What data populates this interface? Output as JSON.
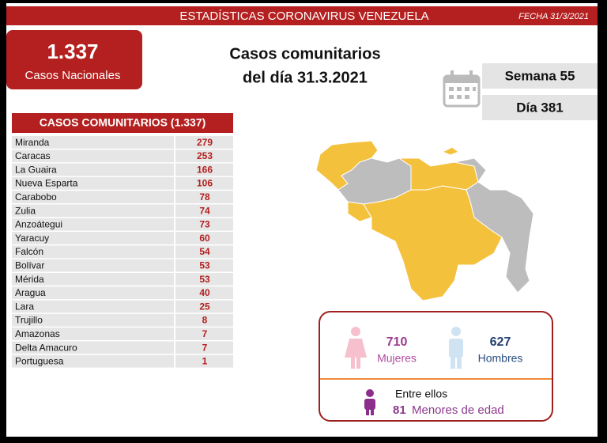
{
  "header": {
    "title": "ESTADÍSTICAS CORONAVIRUS VENEZUELA",
    "date": "FECHA 31/3/2021"
  },
  "national": {
    "value": "1.337",
    "label": "Casos Nacionales"
  },
  "headline": [
    "Casos comunitarios",
    "del día 31.3.2021"
  ],
  "week": "Semana 55",
  "day": "Día 381",
  "table": {
    "title": "CASOS COMUNITARIOS (1.337)",
    "rows": [
      [
        "Miranda",
        279
      ],
      [
        "Caracas",
        253
      ],
      [
        "La Guaira",
        166
      ],
      [
        "Nueva Esparta",
        106
      ],
      [
        "Carabobo",
        78
      ],
      [
        "Zulia",
        74
      ],
      [
        "Anzoátegui",
        73
      ],
      [
        "Yaracuy",
        60
      ],
      [
        "Falcón",
        54
      ],
      [
        "Bolívar",
        53
      ],
      [
        "Mérida",
        53
      ],
      [
        "Aragua",
        40
      ],
      [
        "Lara",
        25
      ],
      [
        "Trujillo",
        8
      ],
      [
        "Amazonas",
        7
      ],
      [
        "Delta Amacuro",
        7
      ],
      [
        "Portuguesa",
        1
      ]
    ]
  },
  "gender": {
    "women": {
      "value": 710,
      "label": "Mujeres"
    },
    "men": {
      "value": 627,
      "label": "Hombres"
    }
  },
  "minors": {
    "intro": "Entre ellos",
    "value": 81,
    "label": "Menores de edad"
  }
}
